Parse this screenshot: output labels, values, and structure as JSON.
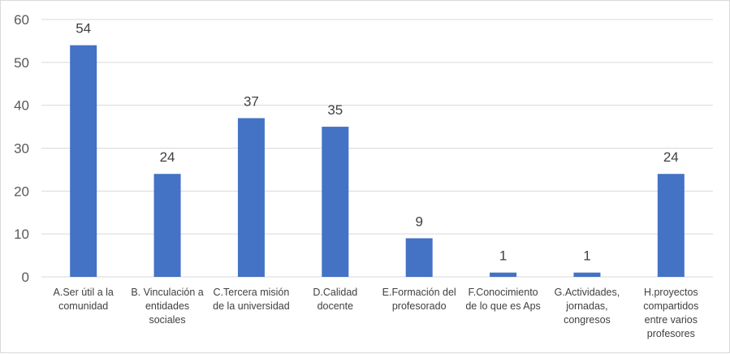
{
  "chart_data": {
    "type": "bar",
    "categories": [
      "A.Ser útil a la comunidad",
      "B. Vinculación a entidades sociales",
      "C.Tercera misión de la universidad",
      "D.Calidad docente",
      "E.Formación del profesorado",
      "F.Conocimiento de lo que es Aps",
      "G.Actividades, jornadas, congresos",
      "H.proyectos compartidos entre varios profesores"
    ],
    "category_lines": [
      [
        "A.Ser útil a la",
        "comunidad"
      ],
      [
        "B. Vinculación a",
        "entidades",
        "sociales"
      ],
      [
        "C.Tercera misión",
        "de la universidad"
      ],
      [
        "D.Calidad",
        "docente"
      ],
      [
        "E.Formación del",
        "profesorado"
      ],
      [
        "F.Conocimiento",
        "de lo que es Aps"
      ],
      [
        "G.Actividades,",
        "jornadas,",
        "congresos"
      ],
      [
        "H.proyectos",
        "compartidos",
        "entre varios",
        "profesores"
      ]
    ],
    "values": [
      54,
      24,
      37,
      35,
      9,
      1,
      1,
      24
    ],
    "ylim": [
      0,
      60
    ],
    "yticks": [
      0,
      10,
      20,
      30,
      40,
      50,
      60
    ],
    "grid": true,
    "title": "",
    "xlabel": "",
    "ylabel": "",
    "bar_color": "#4472c4",
    "grid_color": "#d9d9d9"
  }
}
